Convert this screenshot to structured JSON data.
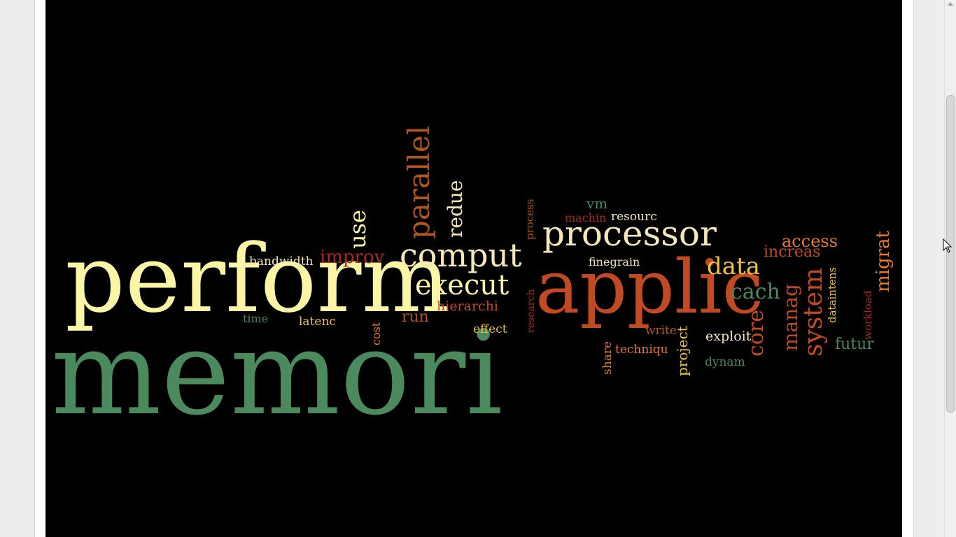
{
  "colors": {
    "background": "#000000",
    "green": "#4a8a5c",
    "cream": "#fcf5a6",
    "lightcream": "#f6e6b8",
    "rust": "#c24a22",
    "orange": "#e87a2a",
    "gold": "#f0c040",
    "darkred": "#a8281e",
    "brown": "#b0561a"
  },
  "cloud": {
    "memori": "memori",
    "perform": "perform",
    "applic": "applic",
    "processor": "processor",
    "comput": "comput",
    "execut": "execut",
    "parallel": "parallel",
    "use": "use",
    "redue": "redue",
    "improv": "improv",
    "bandwidth": "bandwidth",
    "hierarchi": "hierarchi",
    "run": "run",
    "time": "time",
    "latenc": "latenc",
    "cost": "cost",
    "effect": "effect",
    "research": "research",
    "process": "process",
    "machin": "machin",
    "vm": "vm",
    "resourc": "resourc",
    "finegrain": "finegrain",
    "data": "data",
    "cach": "cach",
    "core": "core",
    "access": "access",
    "increas": "increas",
    "manag": "manag",
    "system": "system",
    "migrat": "migrat",
    "dataintens": "dataintens",
    "workload": "workload",
    "futur": "futur",
    "write": "write",
    "exploit": "exploit",
    "dynam": "dynam",
    "project": "project",
    "share": "share",
    "techniqu": "techniqu"
  },
  "icons": {
    "cursor": "arrow-cursor-icon",
    "scroll_up": "scroll-up-arrow-icon"
  }
}
